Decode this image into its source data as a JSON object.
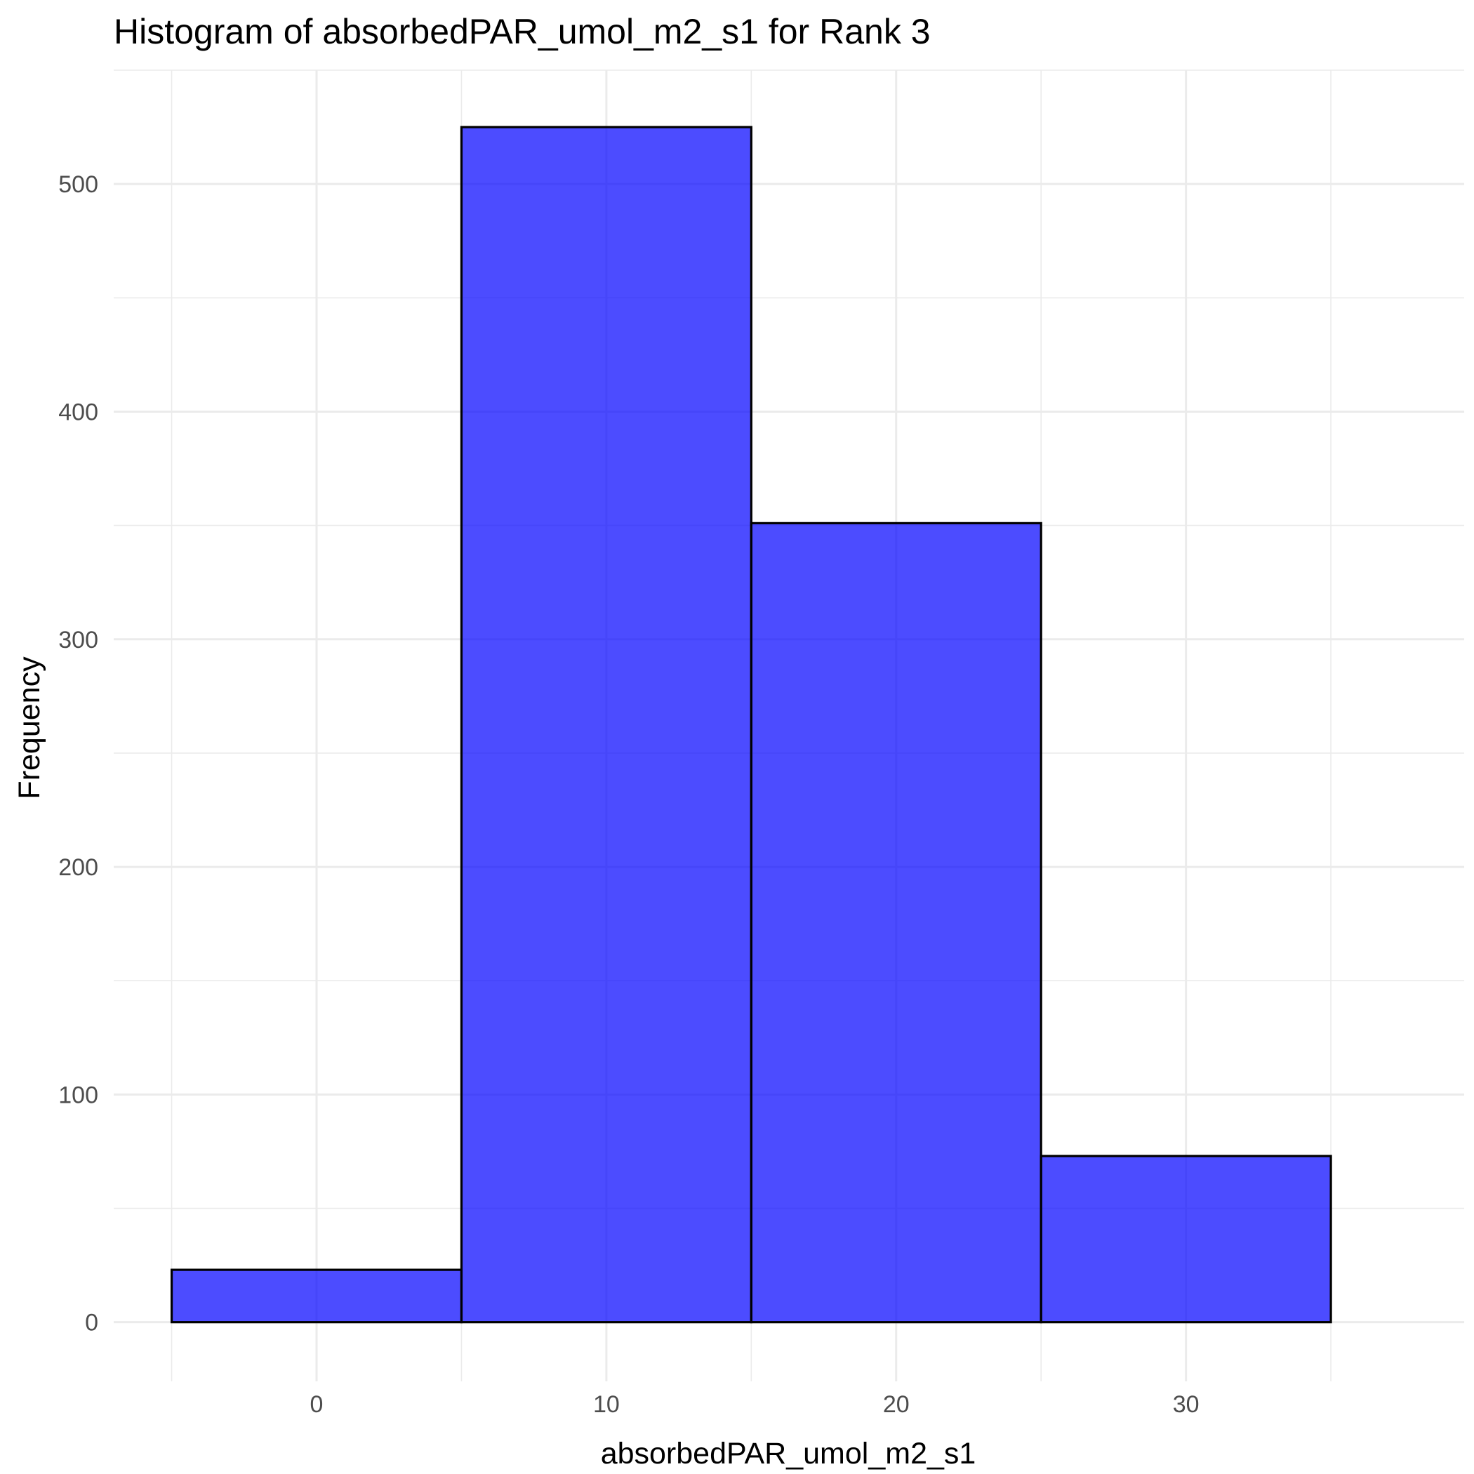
{
  "chart_data": {
    "type": "bar",
    "subtype": "histogram",
    "title": "Histogram of absorbedPAR_umol_m2_s1 for Rank 3",
    "xlabel": "absorbedPAR_umol_m2_s1",
    "ylabel": "Frequency",
    "bins": [
      {
        "x0": -5,
        "x1": 5,
        "count": 23
      },
      {
        "x0": 5,
        "x1": 15,
        "count": 525
      },
      {
        "x0": 15,
        "x1": 25,
        "count": 351
      },
      {
        "x0": 25,
        "x1": 35,
        "count": 73
      }
    ],
    "xlim": [
      -7,
      39.6
    ],
    "ylim": [
      -26,
      550
    ],
    "x_ticks": [
      0,
      10,
      20,
      30
    ],
    "y_ticks": [
      0,
      100,
      200,
      300,
      400,
      500
    ],
    "x_tick_labels": [
      "0",
      "10",
      "20",
      "30"
    ],
    "y_tick_labels": [
      "0",
      "100",
      "200",
      "300",
      "400",
      "500"
    ],
    "grid": true,
    "bar_color": "#0000ff",
    "bar_opacity": 0.7,
    "bar_edge_color": "#000000",
    "legend": "none"
  }
}
